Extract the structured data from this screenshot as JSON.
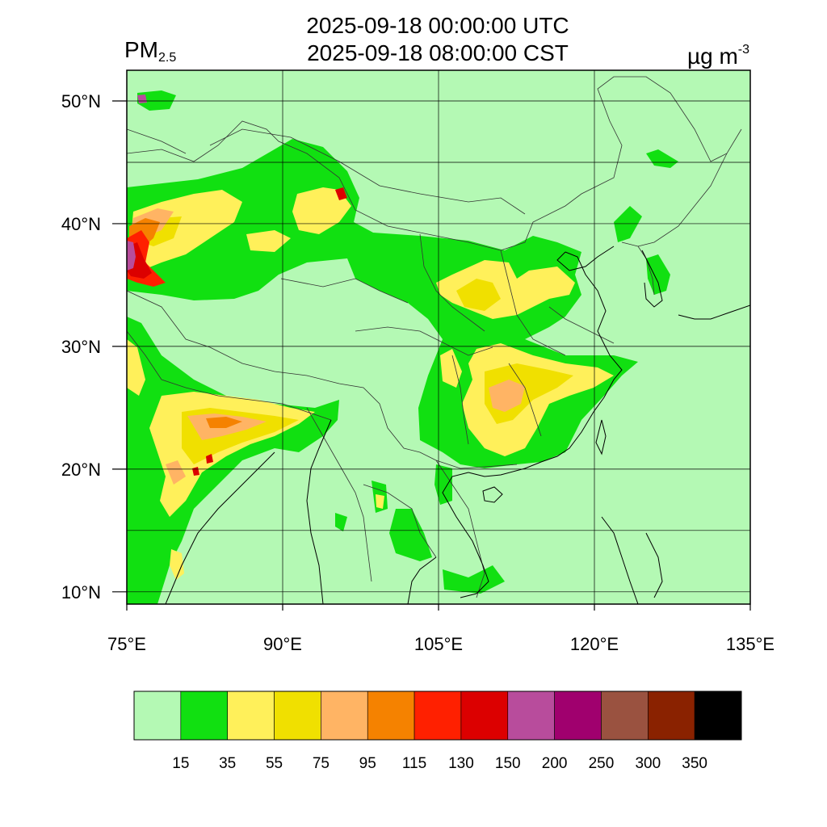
{
  "header": {
    "title_utc": "2025-09-18 00:00:00 UTC",
    "title_cst": "2025-09-18 08:00:00 CST",
    "variable_main": "PM",
    "variable_sub": "2.5",
    "unit_main": "µg m",
    "unit_sup": "-3"
  },
  "map": {
    "lon_range": [
      75,
      135
    ],
    "lat_range": [
      9.0,
      52.5
    ],
    "background_color": "#b4f9b4",
    "lon_ticks": [
      {
        "value": 75,
        "label": "75°E"
      },
      {
        "value": 90,
        "label": "90°E"
      },
      {
        "value": 105,
        "label": "105°E"
      },
      {
        "value": 120,
        "label": "120°E"
      },
      {
        "value": 135,
        "label": "135°E"
      }
    ],
    "lat_ticks": [
      {
        "value": 10,
        "label": "10°N"
      },
      {
        "value": 20,
        "label": "20°N"
      },
      {
        "value": 30,
        "label": "30°N"
      },
      {
        "value": 40,
        "label": "40°N"
      },
      {
        "value": 50,
        "label": "50°N"
      }
    ]
  },
  "colorbar": {
    "colors": [
      "#b4f9b4",
      "#11e011",
      "#fff05a",
      "#f0e000",
      "#ffb464",
      "#f58200",
      "#ff2000",
      "#dc0000",
      "#b84c9c",
      "#a0006e",
      "#9a5240",
      "#8a2200",
      "#000000"
    ],
    "labels": [
      "15",
      "35",
      "55",
      "75",
      "95",
      "115",
      "130",
      "150",
      "200",
      "250",
      "300",
      "350"
    ]
  }
}
